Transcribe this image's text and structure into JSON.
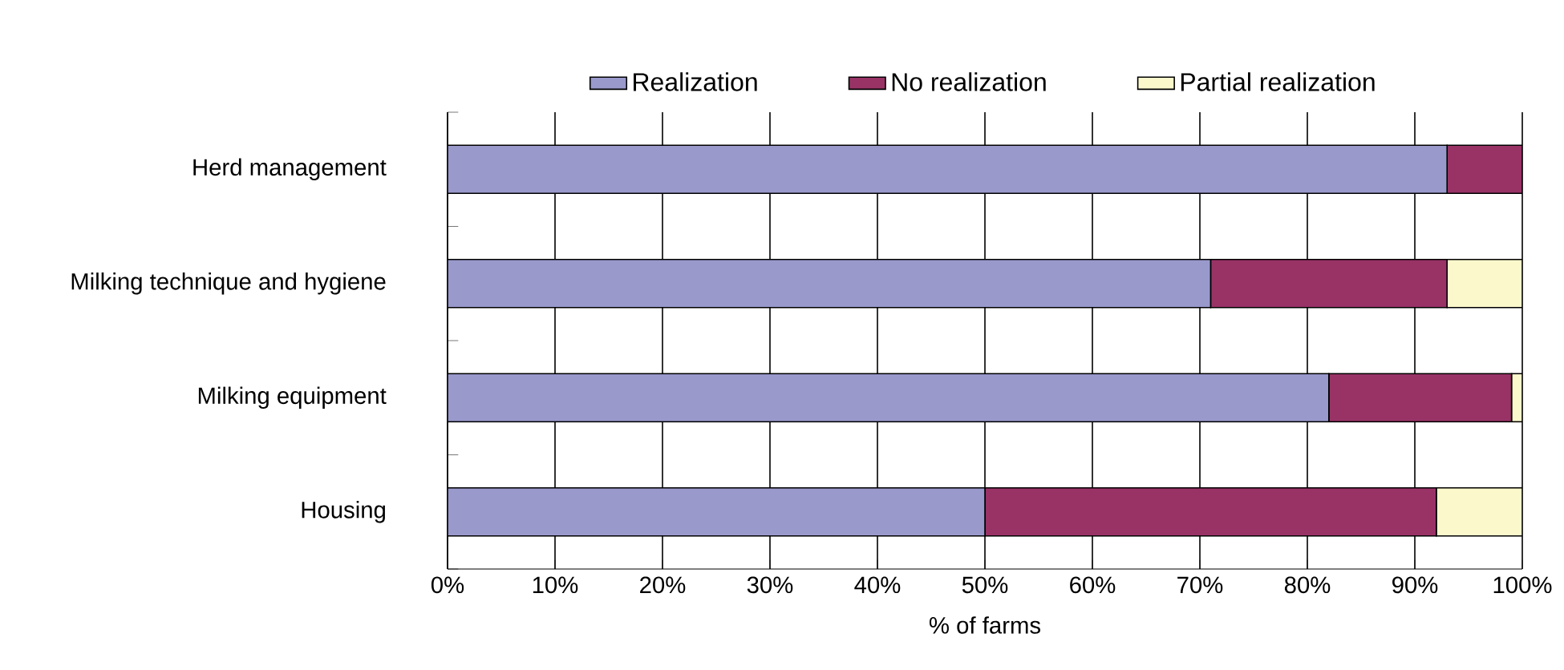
{
  "chart_data": {
    "type": "bar",
    "orientation": "horizontal",
    "stacked": true,
    "categories": [
      "Herd management",
      "Milking technique and hygiene",
      "Milking equipment",
      "Housing"
    ],
    "series": [
      {
        "name": "Realization",
        "color": "#9999cc",
        "values": [
          93,
          71,
          82,
          50
        ]
      },
      {
        "name": "No realization",
        "color": "#993366",
        "values": [
          7,
          22,
          17,
          42
        ]
      },
      {
        "name": "Partial realization",
        "color": "#fbf8cc",
        "values": [
          0,
          7,
          1,
          8
        ]
      }
    ],
    "xlabel": "% of farms",
    "xlim": [
      0,
      100
    ],
    "xticks": [
      {
        "value": 0,
        "label": "0%"
      },
      {
        "value": 10,
        "label": "10%"
      },
      {
        "value": 20,
        "label": "20%"
      },
      {
        "value": 30,
        "label": "30%"
      },
      {
        "value": 40,
        "label": "40%"
      },
      {
        "value": 50,
        "label": "50%"
      },
      {
        "value": 60,
        "label": "60%"
      },
      {
        "value": 70,
        "label": "70%"
      },
      {
        "value": 80,
        "label": "80%"
      },
      {
        "value": 90,
        "label": "90%"
      },
      {
        "value": 100,
        "label": "100%"
      }
    ],
    "grid": "x",
    "legend": "top"
  }
}
